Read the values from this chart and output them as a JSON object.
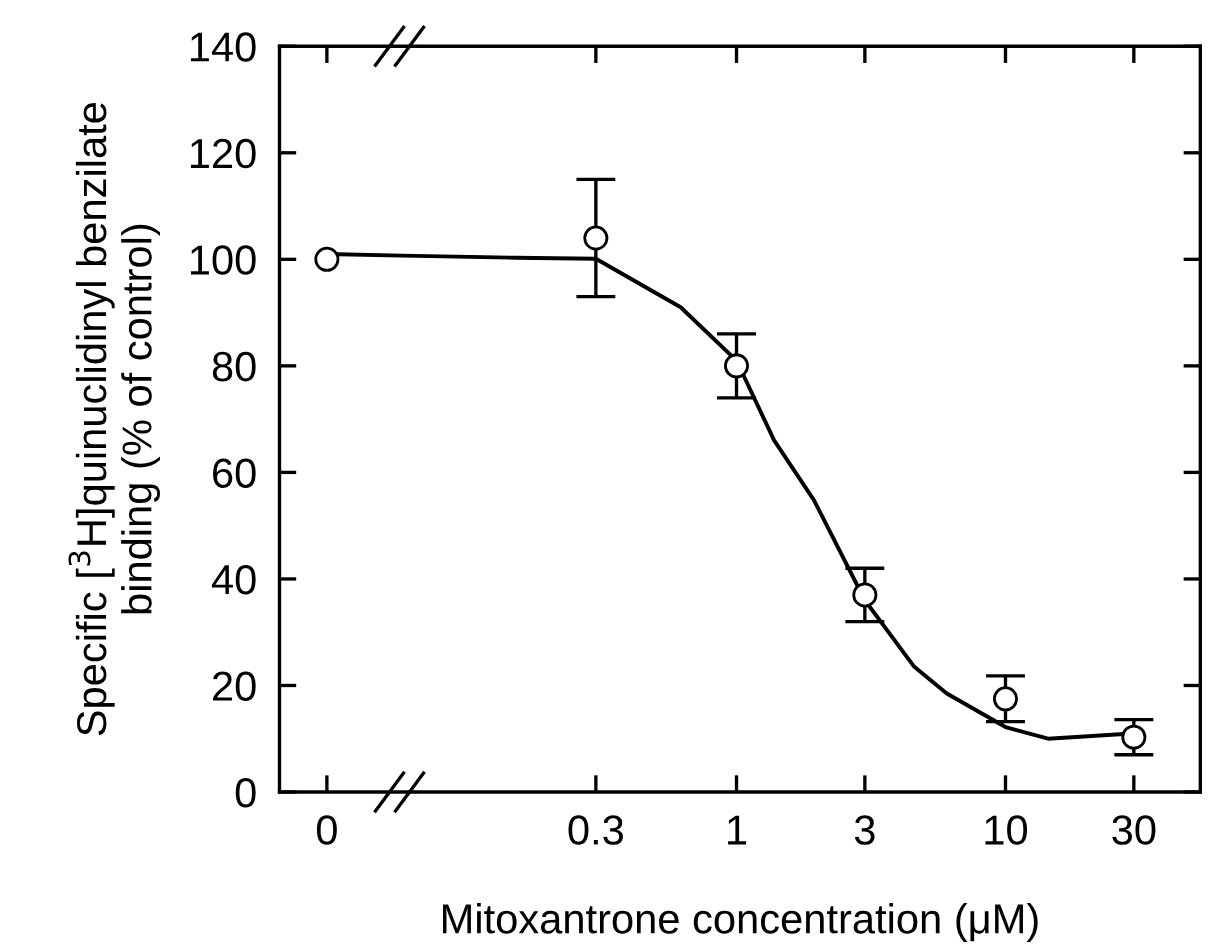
{
  "chart_data": {
    "type": "scatter",
    "xlabel": "Mitoxantrone concentration (μM)",
    "ylabel": "Specific [$^{3}$H]quinuclidinyl benzilate\nbinding (% of control)",
    "log": "x",
    "xlim": [
      0.02,
      53
    ],
    "xticks": [
      {
        "value": 0.03,
        "label": "0"
      },
      0.3,
      1,
      3,
      10,
      30
    ],
    "ylim": [
      0,
      140
    ],
    "yticks": [
      0,
      20,
      40,
      60,
      80,
      100,
      120,
      140
    ],
    "series": [
      {
        "color": "#000000",
        "marker": "circle",
        "x": [
          0.03,
          0.3,
          1,
          3,
          10,
          30
        ],
        "values": [
          100,
          104,
          80,
          37,
          17.5,
          10.3
        ],
        "errors": [
          null,
          11,
          6,
          5,
          4.3,
          3.3
        ]
      },
      {
        "type": "line",
        "color": "#000000",
        "x": [
          0.03,
          0.057,
          0.15,
          0.3,
          0.62,
          1,
          1.38,
          1.94,
          3,
          4.58,
          6.05,
          10,
          14.4,
          30
        ],
        "values": [
          101,
          100.7,
          100.3,
          100.1,
          91,
          81,
          66,
          54.8,
          36,
          23.5,
          18.5,
          12.2,
          10,
          11
        ]
      }
    ]
  }
}
